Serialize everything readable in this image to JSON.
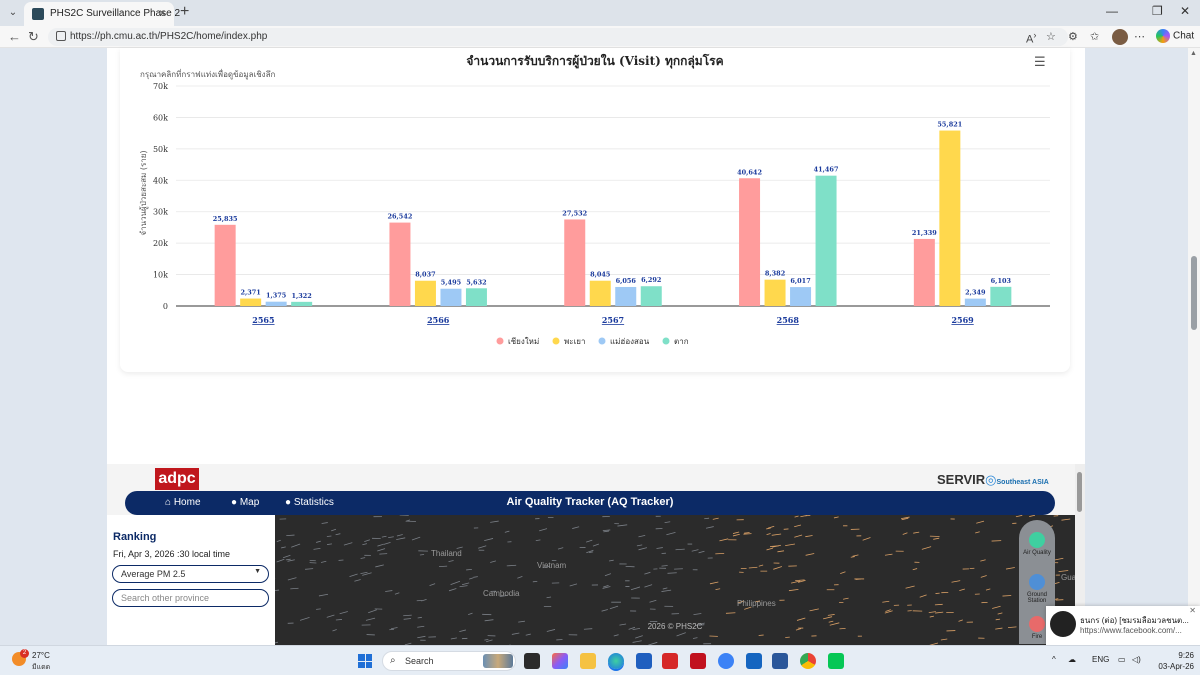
{
  "browser": {
    "tab_title": "PHS2C Surveillance Phase 2",
    "url": "https://ph.cmu.ac.th/PHS2C/home/index.php",
    "chat_label": "Chat"
  },
  "chart_data": {
    "type": "bar",
    "title": "จำนวนการรับบริการผู้ป่วยใน (Visit) ทุกกลุ่มโรค",
    "subtitle": "กรุณาคลิกที่กราฟแท่งเพื่อดูข้อมูลเชิงลึก",
    "xlabel": "",
    "ylabel": "จำนวนผู้ป่วยสะสม (ราย)",
    "ylim": [
      0,
      70000
    ],
    "ytick_labels": [
      "0",
      "10k",
      "20k",
      "30k",
      "40k",
      "50k",
      "60k",
      "70k"
    ],
    "categories": [
      "2565",
      "2566",
      "2567",
      "2568",
      "2569"
    ],
    "series": [
      {
        "name": "เชียงใหม่",
        "color": "#ff9c9c",
        "values": [
          25835,
          26542,
          27532,
          40642,
          21339
        ],
        "labels": [
          "25,835",
          "26,542",
          "27,532",
          "40,642",
          "21,339"
        ]
      },
      {
        "name": "พะเยา",
        "color": "#ffd84d",
        "values": [
          2371,
          8037,
          8045,
          8382,
          55821
        ],
        "labels": [
          "2,371",
          "8,037",
          "8,045",
          "8,382",
          "55,821"
        ]
      },
      {
        "name": "แม่ฮ่องสอน",
        "color": "#9ec9f5",
        "values": [
          1375,
          5495,
          6056,
          6017,
          2349
        ],
        "labels": [
          "1,375",
          "5,495",
          "6,056",
          "6,017",
          "2,349"
        ]
      },
      {
        "name": "ตาก",
        "color": "#7fe0c8",
        "values": [
          1322,
          5632,
          6292,
          41467,
          6103
        ],
        "labels": [
          "1,322",
          "5,632",
          "6,292",
          "41,467",
          "6,103"
        ]
      }
    ],
    "grid": true,
    "legend_position": "bottom"
  },
  "aq": {
    "logo": "adpc",
    "partner": "SERVIR",
    "partner_sub": "Southeast ASIA",
    "nav": {
      "home": "Home",
      "map": "Map",
      "statistics": "Statistics",
      "title": "Air Quality Tracker (AQ Tracker)"
    },
    "ranking_title": "Ranking",
    "datetime": "Fri, Apr 3, 2026 :30 local time",
    "select_value": "Average PM 2.5",
    "search_placeholder": "Search other province",
    "map_labels": {
      "thailand": "Thailand",
      "vietnam": "Vietnam",
      "cambodia": "Cambodia",
      "philippines": "Philippines",
      "guam": "Guar"
    },
    "footer": "2026 © PHS2C",
    "tools": {
      "air_quality": "Air Quality",
      "ground": "Ground Station",
      "fire": "Fire"
    }
  },
  "notification": {
    "title": "ธนกร (ต่อ) [ชมรมลือมวลชนต...",
    "url": "https://www.facebook.com/..."
  },
  "taskbar": {
    "temp": "27°C",
    "condition": "มีแดด",
    "badge": "2",
    "search": "Search",
    "lang": "ENG",
    "time": "9:26",
    "date": "03-Apr-26"
  }
}
